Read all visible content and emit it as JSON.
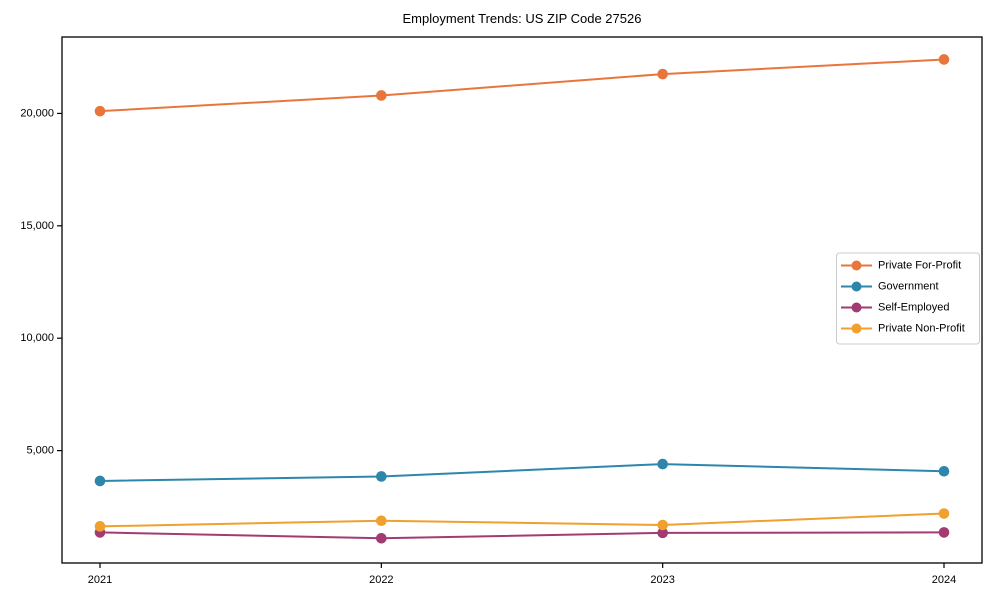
{
  "chart_data": {
    "type": "line",
    "title": "Employment Trends: US ZIP Code 27526",
    "xlabel": "",
    "ylabel": "",
    "grid": false,
    "legend_position": "center right",
    "x": [
      2021,
      2022,
      2023,
      2024
    ],
    "x_tick_labels": [
      "2021",
      "2022",
      "2023",
      "2024"
    ],
    "y_ticks": [
      5000,
      10000,
      15000,
      20000
    ],
    "y_tick_labels": [
      "5,000",
      "10,000",
      "15,000",
      "20,000"
    ],
    "ylim": [
      0,
      23400
    ],
    "series": [
      {
        "name": "Private For-Profit",
        "color": "#E8763C",
        "values": [
          20100,
          20800,
          21750,
          22400
        ]
      },
      {
        "name": "Government",
        "color": "#2E86AB",
        "values": [
          3650,
          3850,
          4400,
          4080
        ]
      },
      {
        "name": "Self-Employed",
        "color": "#A23B72",
        "values": [
          1360,
          1100,
          1340,
          1360
        ]
      },
      {
        "name": "Private Non-Profit",
        "color": "#F0A02F",
        "values": [
          1630,
          1880,
          1690,
          2200
        ]
      }
    ],
    "frame_color": "#000000",
    "legend_border_color": "#cccccc"
  }
}
